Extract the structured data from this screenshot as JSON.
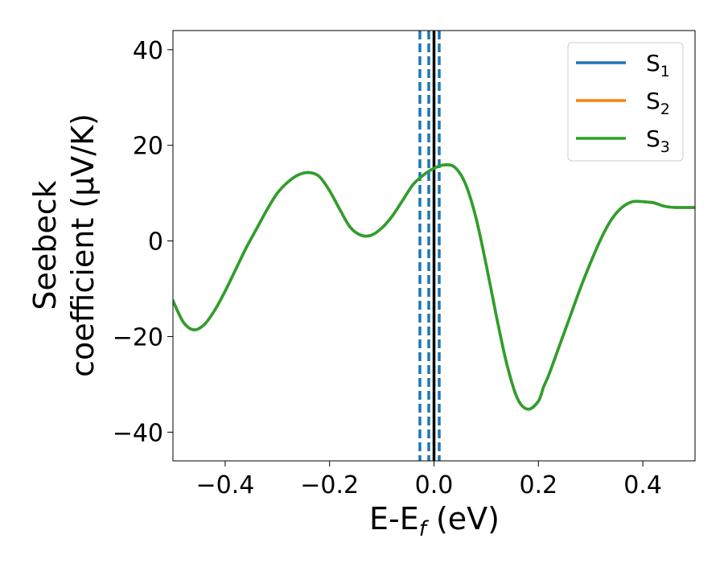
{
  "chart_data": {
    "type": "line",
    "xlabel": {
      "main": "E-E",
      "sub": "f",
      "unit": " (eV)"
    },
    "ylabel": {
      "line1": "Seebeck",
      "line2": "coefficient  (μV/K)"
    },
    "xlim": [
      -0.5,
      0.5
    ],
    "ylim": [
      -46,
      44
    ],
    "xticks": [
      -0.4,
      -0.2,
      0.0,
      0.2,
      0.4
    ],
    "xtick_labels": [
      "−0.4",
      "−0.2",
      "0.0",
      "0.2",
      "0.4"
    ],
    "yticks": [
      40,
      20,
      0,
      -20,
      -40
    ],
    "ytick_labels": [
      "40",
      "20",
      "0",
      "−20",
      "−40"
    ],
    "grid": false,
    "legend_position": "top-right",
    "x": [
      -0.5,
      -0.48,
      -0.46,
      -0.44,
      -0.42,
      -0.4,
      -0.38,
      -0.36,
      -0.34,
      -0.32,
      -0.3,
      -0.28,
      -0.26,
      -0.24,
      -0.22,
      -0.2,
      -0.18,
      -0.16,
      -0.14,
      -0.12,
      -0.1,
      -0.08,
      -0.06,
      -0.04,
      -0.02,
      0.0,
      0.02,
      0.04,
      0.06,
      0.08,
      0.1,
      0.12,
      0.14,
      0.16,
      0.18,
      0.2,
      0.21,
      0.22,
      0.24,
      0.26,
      0.28,
      0.3,
      0.32,
      0.34,
      0.36,
      0.38,
      0.4,
      0.42,
      0.44,
      0.46,
      0.48,
      0.5
    ],
    "series": [
      {
        "name": "S",
        "sub": "1",
        "color": "#1f77b4",
        "values": [
          -12.5,
          -17.0,
          -18.6,
          -17.5,
          -14.5,
          -10.5,
          -6.0,
          -1.5,
          2.5,
          6.5,
          10.0,
          12.3,
          13.8,
          14.3,
          13.5,
          10.5,
          6.5,
          2.8,
          1.2,
          1.2,
          2.7,
          5.2,
          8.5,
          11.8,
          13.8,
          15.2,
          15.9,
          15.4,
          12.0,
          5.0,
          -5.0,
          -16.0,
          -26.0,
          -33.0,
          -35.2,
          -33.5,
          -30.5,
          -28.0,
          -22.0,
          -16.0,
          -10.0,
          -4.5,
          0.5,
          4.5,
          7.0,
          8.2,
          8.2,
          8.0,
          7.3,
          7.0,
          7.0,
          7.0
        ]
      },
      {
        "name": "S",
        "sub": "2",
        "color": "#ff7f0e",
        "values": [
          -12.5,
          -17.0,
          -18.6,
          -17.5,
          -14.5,
          -10.5,
          -6.0,
          -1.5,
          2.5,
          6.5,
          10.0,
          12.3,
          13.8,
          14.3,
          13.5,
          10.5,
          6.5,
          2.8,
          1.2,
          1.2,
          2.7,
          5.2,
          8.5,
          11.8,
          13.8,
          15.2,
          15.9,
          15.4,
          12.0,
          5.0,
          -5.0,
          -16.0,
          -26.0,
          -33.0,
          -35.2,
          -33.5,
          -30.5,
          -28.0,
          -22.0,
          -16.0,
          -10.0,
          -4.5,
          0.5,
          4.5,
          7.0,
          8.2,
          8.2,
          8.0,
          7.3,
          7.0,
          7.0,
          7.0
        ]
      },
      {
        "name": "S",
        "sub": "3",
        "color": "#2ca02c",
        "values": [
          -12.5,
          -17.0,
          -18.6,
          -17.5,
          -14.5,
          -10.5,
          -6.0,
          -1.5,
          2.5,
          6.5,
          10.0,
          12.3,
          13.8,
          14.3,
          13.5,
          10.5,
          6.5,
          2.8,
          1.2,
          1.2,
          2.7,
          5.2,
          8.5,
          11.8,
          13.8,
          15.2,
          15.9,
          15.4,
          12.0,
          5.0,
          -5.0,
          -16.0,
          -26.0,
          -33.0,
          -35.2,
          -33.5,
          -30.5,
          -28.0,
          -22.0,
          -16.0,
          -10.0,
          -4.5,
          0.5,
          4.5,
          7.0,
          8.2,
          8.2,
          8.0,
          7.3,
          7.0,
          7.0,
          7.0
        ]
      }
    ],
    "vlines_dashed": {
      "color": "#1f77b4",
      "x": [
        -0.027,
        -0.01,
        0.01
      ]
    },
    "vline_solid": {
      "color": "#000000",
      "x": 0.0
    }
  }
}
